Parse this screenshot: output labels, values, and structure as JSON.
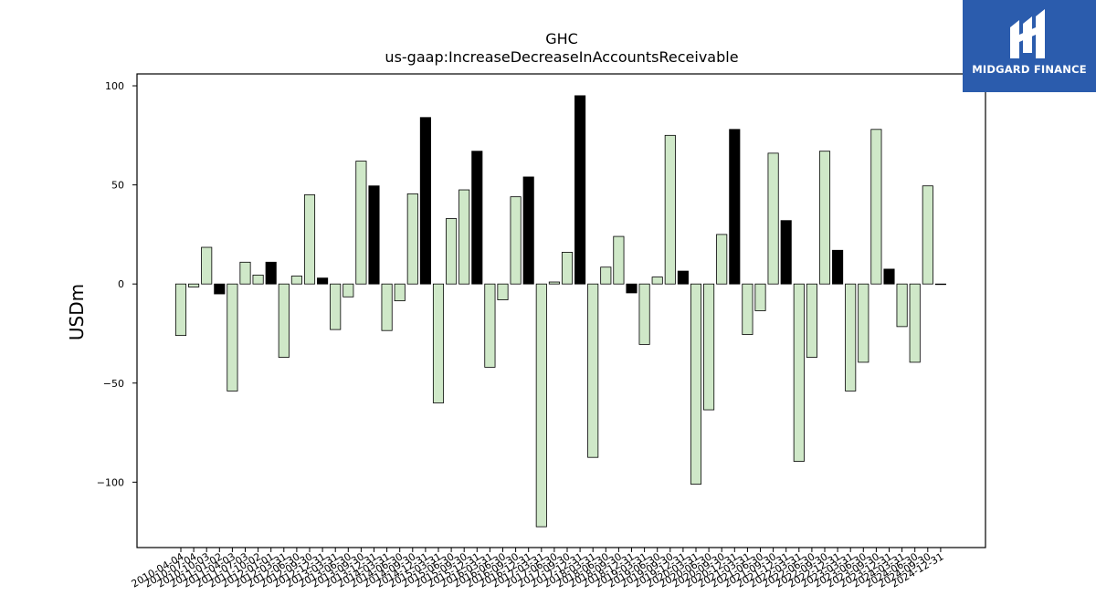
{
  "logo": {
    "text": "MIDGARD FINANCE",
    "colors": {
      "background": "#2b5cad",
      "foreground": "#ffffff"
    }
  },
  "chart_data": {
    "type": "bar",
    "title": "GHC",
    "subtitle": "us-gaap:IncreaseDecreaseInAccountsReceivable",
    "xlabel": "",
    "ylabel": "USDm",
    "ylim": [
      -133,
      106
    ],
    "yticks": [
      100,
      50,
      0,
      -50,
      -100
    ],
    "ytick_labels": [
      "100",
      "50",
      "0",
      "−50",
      "−100"
    ],
    "grid": false,
    "legend": "none",
    "colors": {
      "positive_highlight": "#000000",
      "regular": "#cfe8c8",
      "edge": "#000000"
    },
    "categories": [
      "2010-04-04",
      "2010-07-04",
      "2010-10-03",
      "2011-01-02",
      "2011-04-03",
      "2011-07-03",
      "2011-10-02",
      "2012-01-01",
      "2012-03-31",
      "2012-06-30",
      "2012-09-30",
      "2012-12-31",
      "2013-03-31",
      "2013-06-30",
      "2013-09-30",
      "2013-12-31",
      "2014-03-31",
      "2014-06-30",
      "2014-09-30",
      "2014-12-31",
      "2015-03-31",
      "2015-06-30",
      "2015-09-30",
      "2015-12-31",
      "2016-03-31",
      "2016-06-30",
      "2016-09-30",
      "2016-12-31",
      "2017-03-31",
      "2017-06-30",
      "2017-09-30",
      "2017-12-31",
      "2018-03-31",
      "2018-06-30",
      "2018-09-30",
      "2018-12-31",
      "2019-03-31",
      "2019-06-30",
      "2019-09-30",
      "2019-12-31",
      "2020-03-31",
      "2020-06-30",
      "2020-09-30",
      "2020-12-31",
      "2021-03-31",
      "2021-06-30",
      "2021-09-30",
      "2021-12-31",
      "2022-03-31",
      "2022-06-30",
      "2022-09-30",
      "2022-12-31",
      "2023-03-31",
      "2023-06-30",
      "2023-09-30",
      "2023-12-31",
      "2024-03-31",
      "2024-06-30",
      "2024-09-30",
      "2024-12-31"
    ],
    "values": [
      -26,
      -1.5,
      18.5,
      -5,
      -54,
      11,
      4.5,
      11,
      -37,
      4,
      45,
      3,
      -23,
      -6.5,
      62,
      49.5,
      -23.5,
      -8.5,
      45.5,
      84,
      -60,
      33,
      47.5,
      67,
      -42,
      -8,
      44,
      54,
      -122.5,
      1,
      16,
      95,
      -87.5,
      8.5,
      24,
      -4.5,
      -30.5,
      3.5,
      75,
      6.5,
      -101,
      -63.5,
      25,
      78,
      -25.5,
      -13.5,
      66,
      32,
      -89.5,
      -37,
      67,
      17,
      -54,
      -39.5,
      78,
      7.5,
      -21.5,
      -39.5,
      49.5,
      0
    ],
    "highlight": [
      false,
      false,
      false,
      true,
      false,
      false,
      false,
      true,
      false,
      false,
      false,
      true,
      false,
      false,
      false,
      true,
      false,
      false,
      false,
      true,
      false,
      false,
      false,
      true,
      false,
      false,
      false,
      true,
      false,
      false,
      false,
      true,
      false,
      false,
      false,
      true,
      false,
      false,
      false,
      true,
      false,
      false,
      false,
      true,
      false,
      false,
      false,
      true,
      false,
      false,
      false,
      true,
      false,
      false,
      false,
      true,
      false,
      false,
      false,
      true
    ]
  }
}
